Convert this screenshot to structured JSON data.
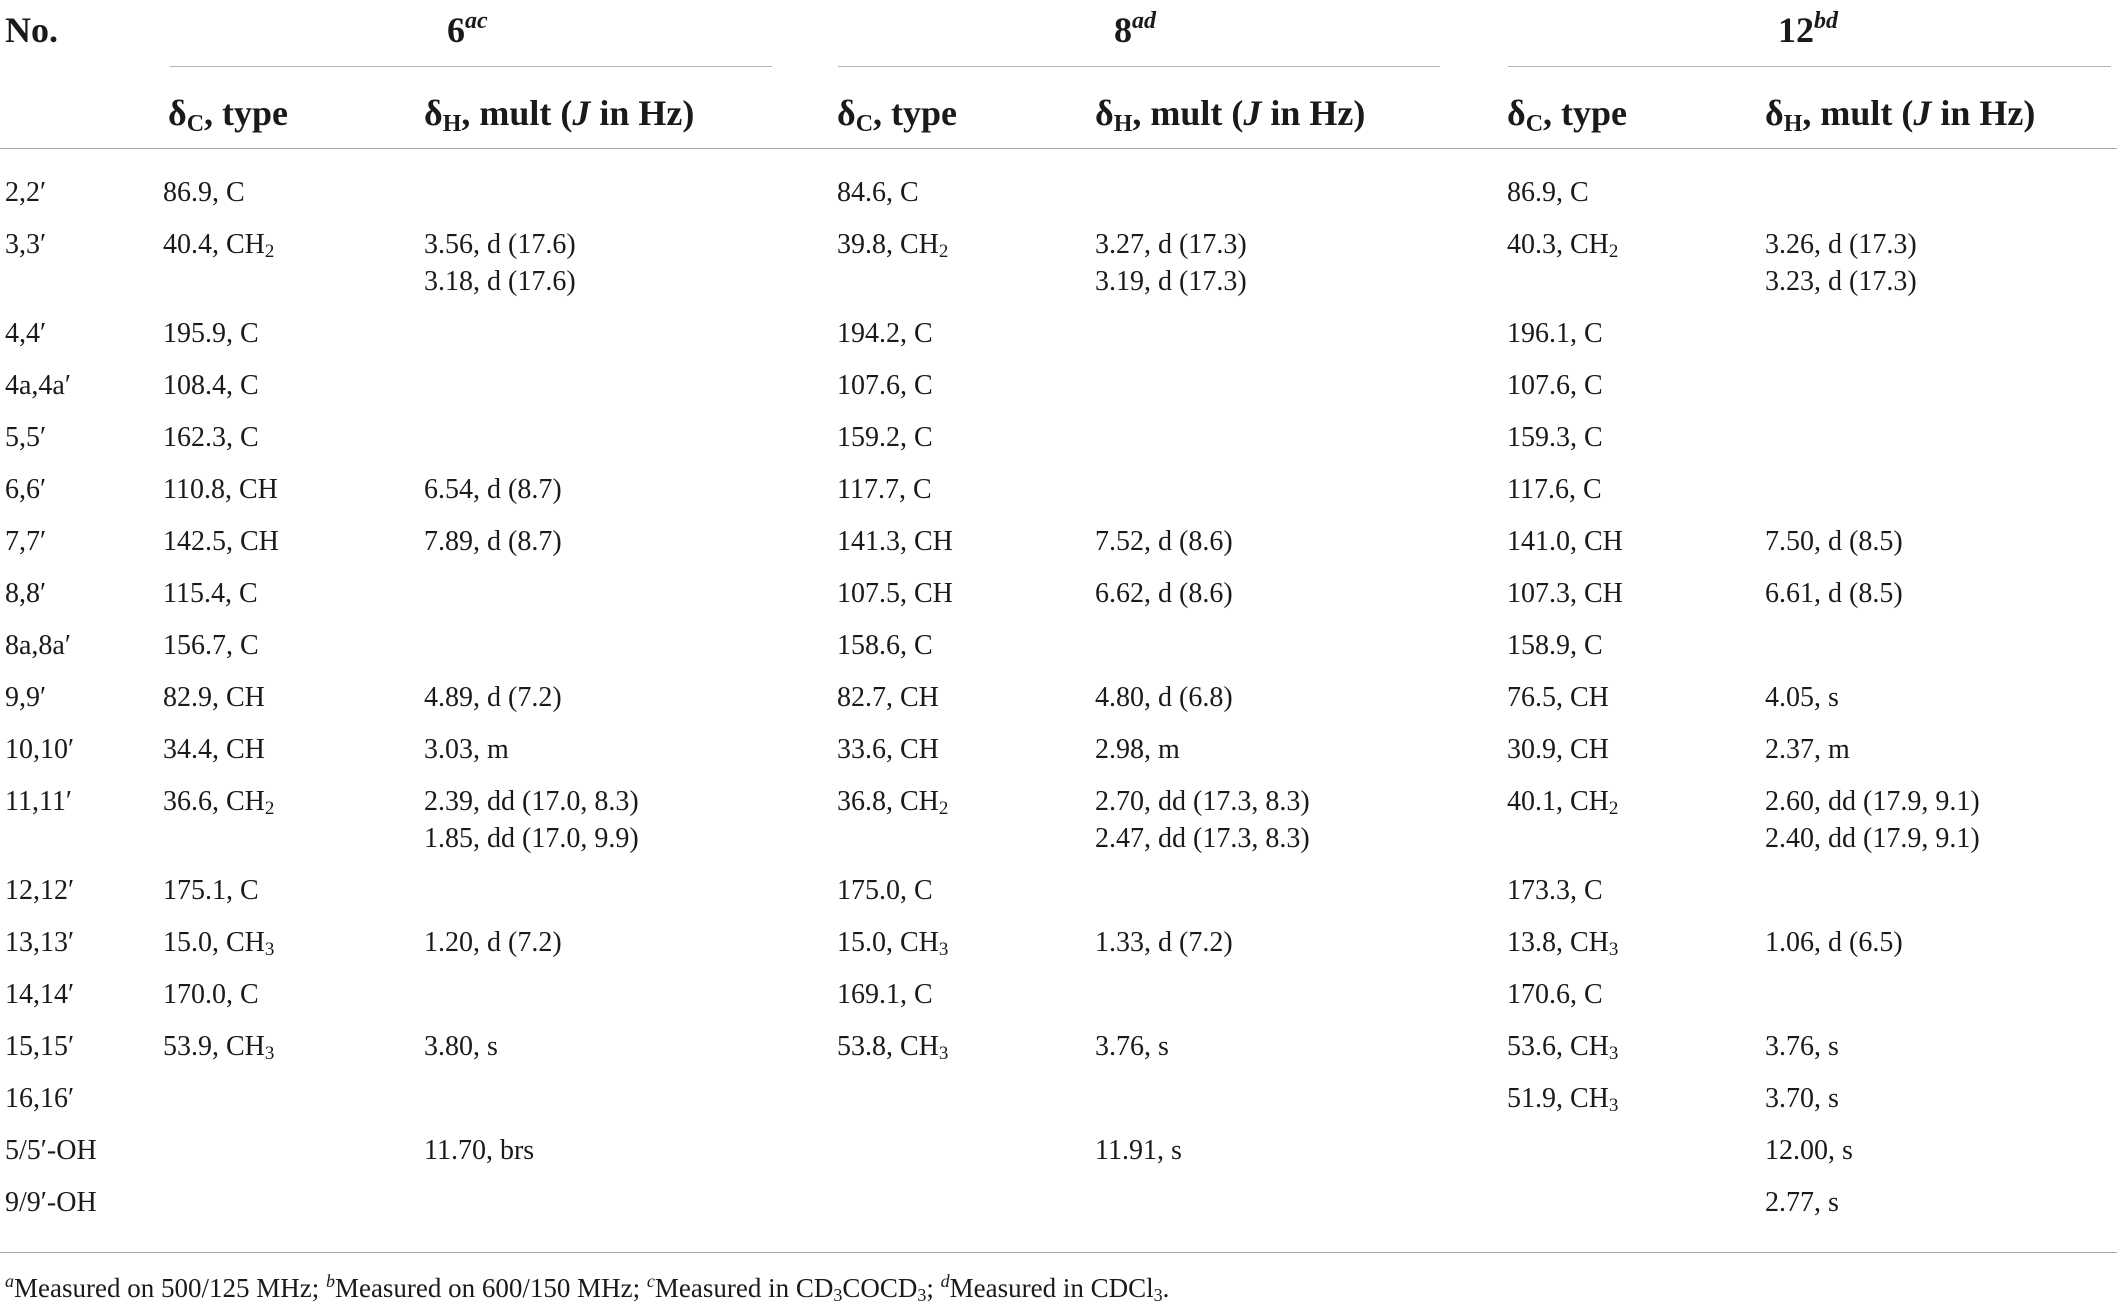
{
  "table": {
    "headers": {
      "no": "No.",
      "compounds": [
        {
          "num": "6",
          "sup": "ac"
        },
        {
          "num": "8",
          "sup": "ad"
        },
        {
          "num": "12",
          "sup": "bd"
        }
      ],
      "sub_c_prefix": "δ",
      "sub_c_sub": "C",
      "sub_c_suffix": ", type",
      "sub_h_prefix": "δ",
      "sub_h_sub": "H",
      "sub_h_mid": ", mult (",
      "sub_h_j": "J",
      "sub_h_suffix": " in Hz)"
    },
    "rows": [
      {
        "no": "2,2′",
        "cells": [
          [
            [
              "86.9, C"
            ]
          ],
          [],
          [
            [
              "84.6, C"
            ]
          ],
          [],
          [
            [
              "86.9, C"
            ]
          ],
          []
        ]
      },
      {
        "no": "3,3′",
        "cells": [
          [
            [
              "40.4, CH",
              "2"
            ]
          ],
          [
            [
              "3.56, d (17.6)"
            ],
            [
              "3.18, d (17.6)"
            ]
          ],
          [
            [
              "39.8, CH",
              "2"
            ]
          ],
          [
            [
              "3.27, d (17.3)"
            ],
            [
              "3.19, d (17.3)"
            ]
          ],
          [
            [
              "40.3, CH",
              "2"
            ]
          ],
          [
            [
              "3.26, d (17.3)"
            ],
            [
              "3.23, d (17.3)"
            ]
          ]
        ]
      },
      {
        "no": "4,4′",
        "cells": [
          [
            [
              "195.9, C"
            ]
          ],
          [],
          [
            [
              "194.2, C"
            ]
          ],
          [],
          [
            [
              "196.1, C"
            ]
          ],
          []
        ]
      },
      {
        "no": "4a,4a′",
        "cells": [
          [
            [
              "108.4, C"
            ]
          ],
          [],
          [
            [
              "107.6, C"
            ]
          ],
          [],
          [
            [
              "107.6, C"
            ]
          ],
          []
        ]
      },
      {
        "no": "5,5′",
        "cells": [
          [
            [
              "162.3, C"
            ]
          ],
          [],
          [
            [
              "159.2, C"
            ]
          ],
          [],
          [
            [
              "159.3, C"
            ]
          ],
          []
        ]
      },
      {
        "no": "6,6′",
        "cells": [
          [
            [
              "110.8, CH"
            ]
          ],
          [
            [
              "6.54, d (8.7)"
            ]
          ],
          [
            [
              "117.7, C"
            ]
          ],
          [],
          [
            [
              "117.6, C"
            ]
          ],
          []
        ]
      },
      {
        "no": "7,7′",
        "cells": [
          [
            [
              "142.5, CH"
            ]
          ],
          [
            [
              "7.89, d (8.7)"
            ]
          ],
          [
            [
              "141.3, CH"
            ]
          ],
          [
            [
              "7.52, d (8.6)"
            ]
          ],
          [
            [
              "141.0, CH"
            ]
          ],
          [
            [
              "7.50, d (8.5)"
            ]
          ]
        ]
      },
      {
        "no": "8,8′",
        "cells": [
          [
            [
              "115.4, C"
            ]
          ],
          [],
          [
            [
              "107.5, CH"
            ]
          ],
          [
            [
              "6.62, d (8.6)"
            ]
          ],
          [
            [
              "107.3, CH"
            ]
          ],
          [
            [
              "6.61, d (8.5)"
            ]
          ]
        ]
      },
      {
        "no": "8a,8a′",
        "cells": [
          [
            [
              "156.7, C"
            ]
          ],
          [],
          [
            [
              "158.6, C"
            ]
          ],
          [],
          [
            [
              "158.9, C"
            ]
          ],
          []
        ]
      },
      {
        "no": "9,9′",
        "cells": [
          [
            [
              "82.9, CH"
            ]
          ],
          [
            [
              "4.89, d (7.2)"
            ]
          ],
          [
            [
              "82.7, CH"
            ]
          ],
          [
            [
              "4.80, d (6.8)"
            ]
          ],
          [
            [
              "76.5, CH"
            ]
          ],
          [
            [
              "4.05, s"
            ]
          ]
        ]
      },
      {
        "no": "10,10′",
        "cells": [
          [
            [
              "34.4, CH"
            ]
          ],
          [
            [
              "3.03, m"
            ]
          ],
          [
            [
              "33.6, CH"
            ]
          ],
          [
            [
              "2.98, m"
            ]
          ],
          [
            [
              "30.9, CH"
            ]
          ],
          [
            [
              "2.37, m"
            ]
          ]
        ]
      },
      {
        "no": "11,11′",
        "cells": [
          [
            [
              "36.6, CH",
              "2"
            ]
          ],
          [
            [
              "2.39, dd (17.0, 8.3)"
            ],
            [
              "1.85, dd (17.0, 9.9)"
            ]
          ],
          [
            [
              "36.8, CH",
              "2"
            ]
          ],
          [
            [
              "2.70, dd (17.3, 8.3)"
            ],
            [
              "2.47, dd (17.3, 8.3)"
            ]
          ],
          [
            [
              "40.1, CH",
              "2"
            ]
          ],
          [
            [
              "2.60, dd (17.9, 9.1)"
            ],
            [
              "2.40, dd (17.9, 9.1)"
            ]
          ]
        ]
      },
      {
        "no": "12,12′",
        "cells": [
          [
            [
              "175.1, C"
            ]
          ],
          [],
          [
            [
              "175.0, C"
            ]
          ],
          [],
          [
            [
              "173.3, C"
            ]
          ],
          []
        ]
      },
      {
        "no": "13,13′",
        "cells": [
          [
            [
              "15.0, CH",
              "3"
            ]
          ],
          [
            [
              "1.20, d (7.2)"
            ]
          ],
          [
            [
              "15.0, CH",
              "3"
            ]
          ],
          [
            [
              "1.33, d (7.2)"
            ]
          ],
          [
            [
              "13.8, CH",
              "3"
            ]
          ],
          [
            [
              "1.06, d (6.5)"
            ]
          ]
        ]
      },
      {
        "no": "14,14′",
        "cells": [
          [
            [
              "170.0, C"
            ]
          ],
          [],
          [
            [
              "169.1, C"
            ]
          ],
          [],
          [
            [
              "170.6, C"
            ]
          ],
          []
        ]
      },
      {
        "no": "15,15′",
        "cells": [
          [
            [
              "53.9, CH",
              "3"
            ]
          ],
          [
            [
              "3.80, s"
            ]
          ],
          [
            [
              "53.8, CH",
              "3"
            ]
          ],
          [
            [
              "3.76, s"
            ]
          ],
          [
            [
              "53.6, CH",
              "3"
            ]
          ],
          [
            [
              "3.76, s"
            ]
          ]
        ]
      },
      {
        "no": "16,16′",
        "cells": [
          [],
          [],
          [],
          [],
          [
            [
              "51.9, CH",
              "3"
            ]
          ],
          [
            [
              "3.70, s"
            ]
          ]
        ]
      },
      {
        "no": "5/5′-OH",
        "cells": [
          [],
          [
            [
              "11.70, brs"
            ]
          ],
          [],
          [
            [
              "11.91, s"
            ]
          ],
          [],
          [
            [
              "12.00, s"
            ]
          ]
        ]
      },
      {
        "no": "9/9′-OH",
        "cells": [
          [],
          [],
          [],
          [],
          [],
          [
            [
              "2.77, s"
            ]
          ]
        ]
      }
    ]
  },
  "footnote": {
    "parts": [
      {
        "sup": "a",
        "text": "Measured on 500/125 MHz; "
      },
      {
        "sup": "b",
        "text": "Measured on 600/150 MHz; "
      },
      {
        "sup": "c",
        "text": "Measured in CD",
        "sub1": "3",
        "text2": "COCD",
        "sub2": "3",
        "text3": "; "
      },
      {
        "sup": "d",
        "text": "Measured in CDCl",
        "sub1": "3",
        "text2": "."
      }
    ]
  }
}
